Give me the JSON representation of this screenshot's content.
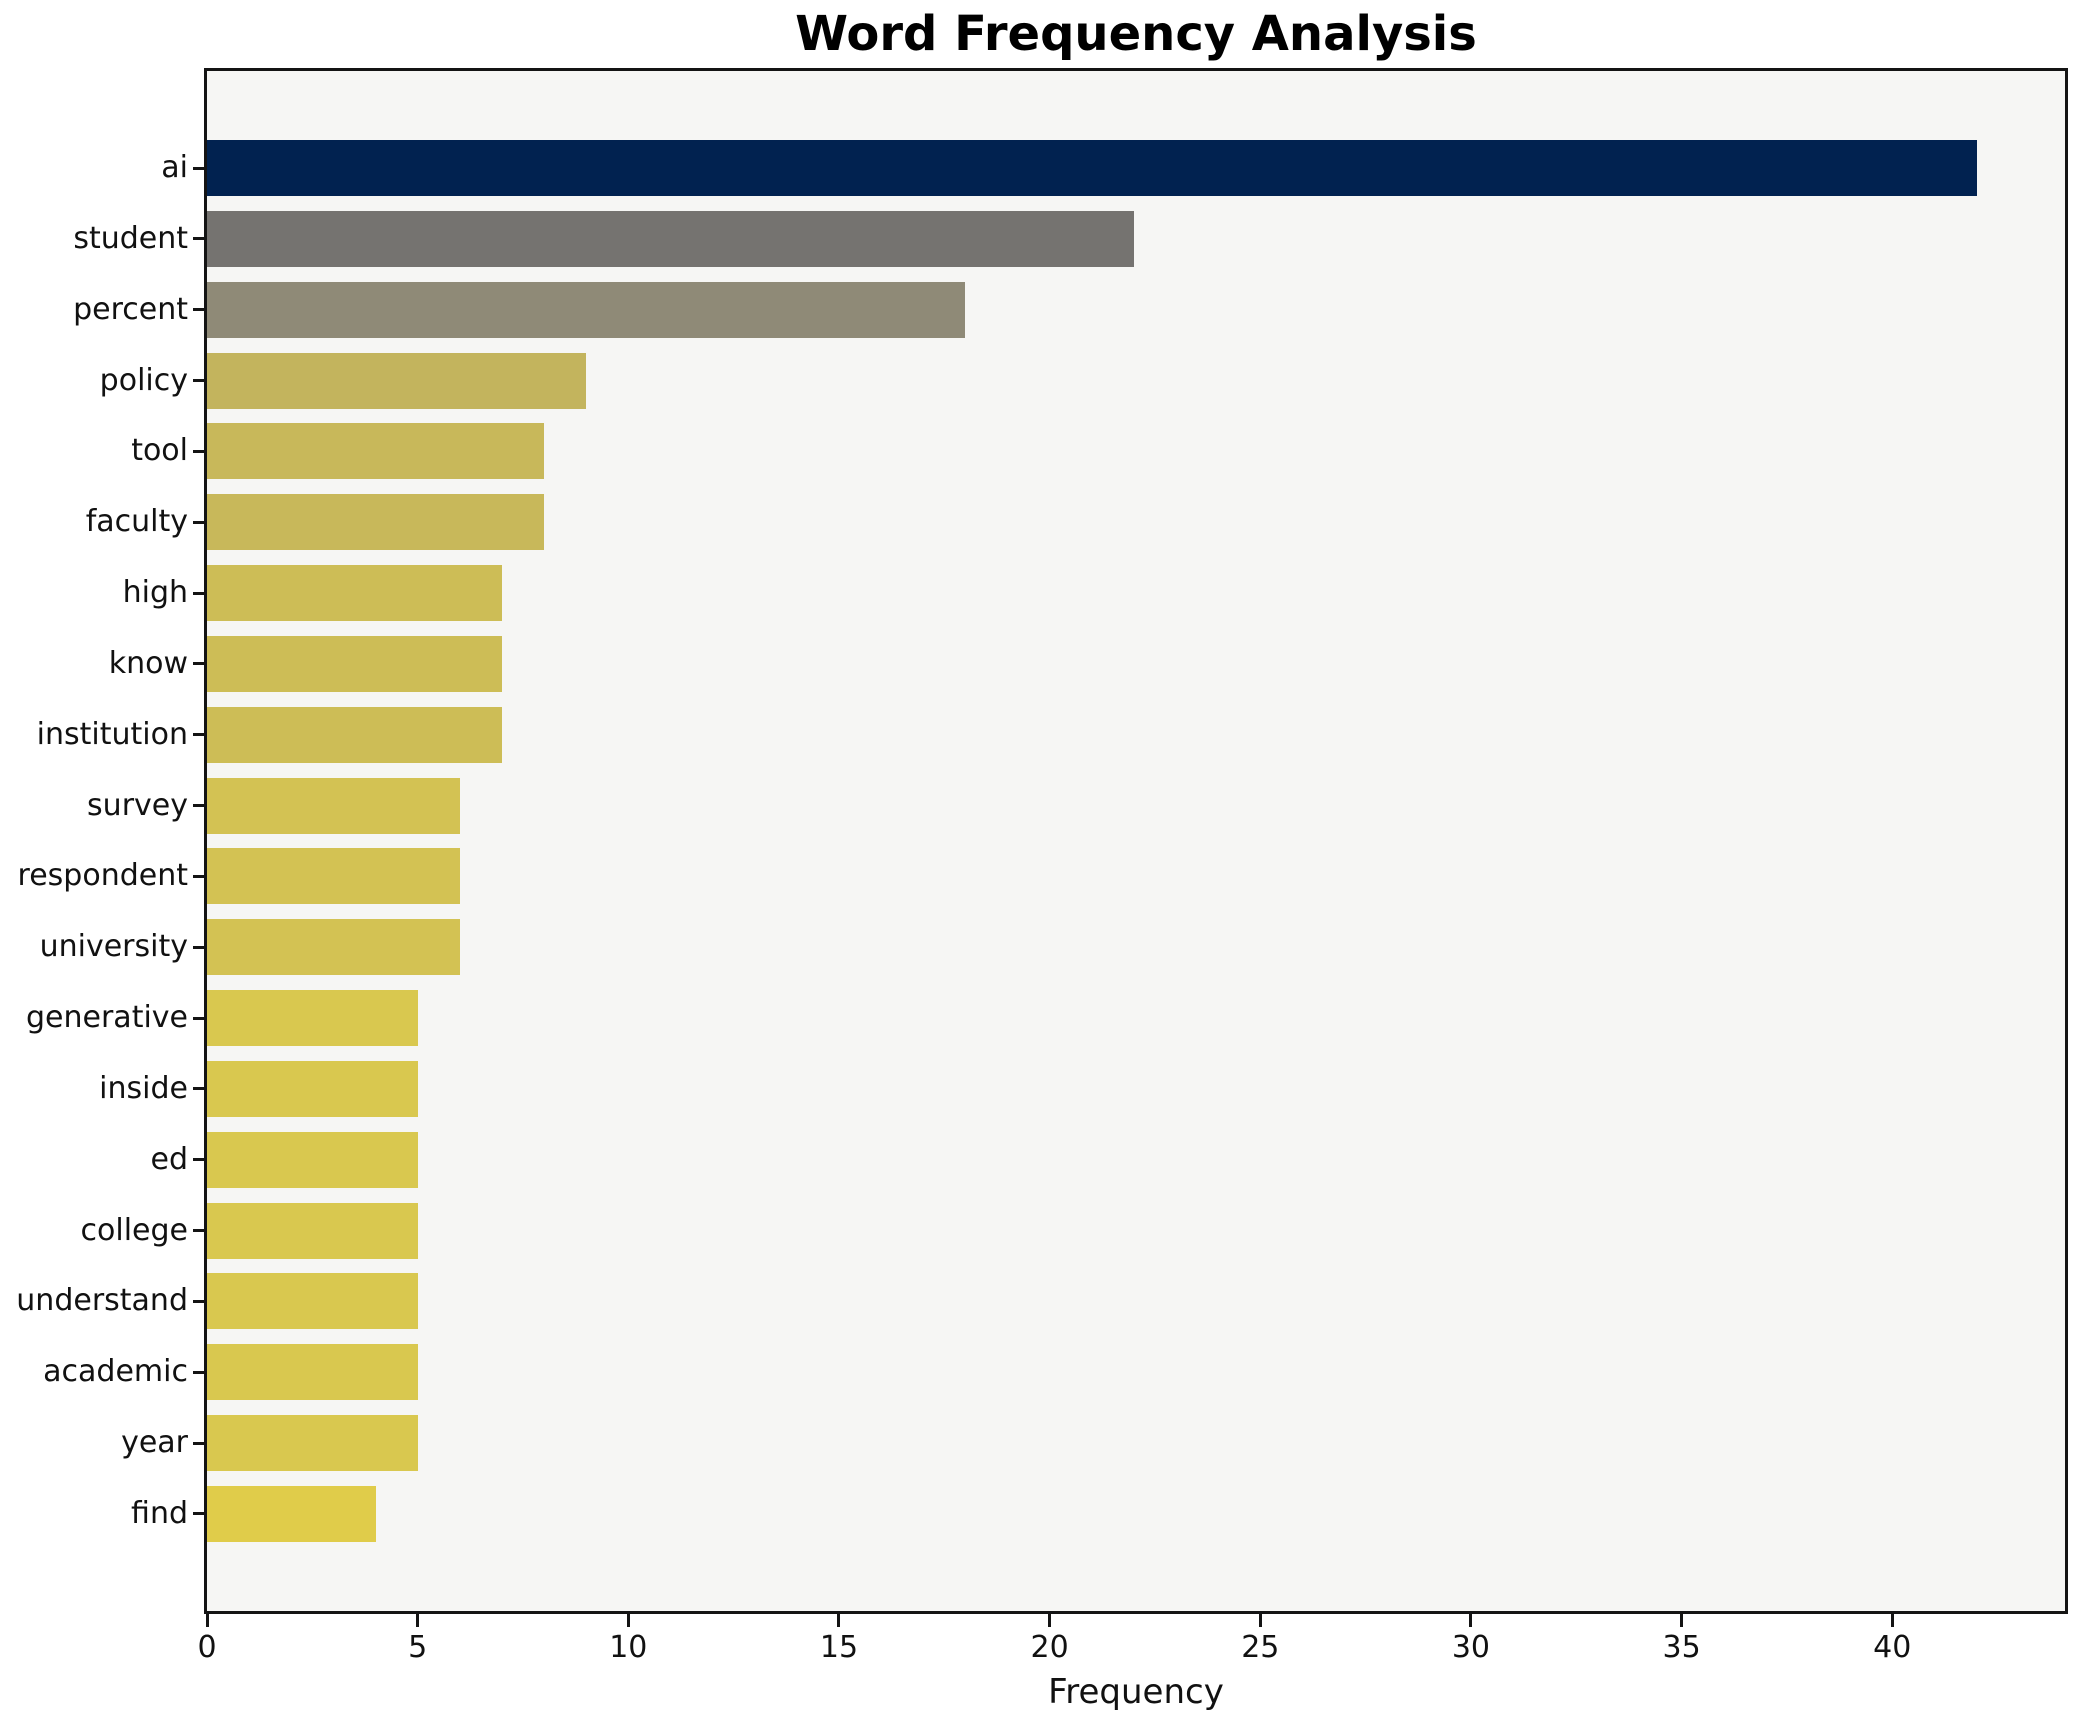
{
  "chart_data": {
    "type": "bar",
    "orientation": "horizontal",
    "title": "Word Frequency Analysis",
    "xlabel": "Frequency",
    "ylabel": "",
    "categories": [
      "ai",
      "student",
      "percent",
      "policy",
      "tool",
      "faculty",
      "high",
      "know",
      "institution",
      "survey",
      "respondent",
      "university",
      "generative",
      "inside",
      "ed",
      "college",
      "understand",
      "academic",
      "year",
      "find"
    ],
    "values": [
      42,
      22,
      18,
      9,
      8,
      8,
      7,
      7,
      7,
      6,
      6,
      6,
      5,
      5,
      5,
      5,
      5,
      5,
      5,
      4
    ],
    "bar_colors": [
      "#012250",
      "#757370",
      "#8f8a77",
      "#c3b45d",
      "#c8b85a",
      "#c8b85a",
      "#cdbd56",
      "#cdbd56",
      "#cdbd56",
      "#d3c253",
      "#d3c253",
      "#d3c253",
      "#d9c84f",
      "#d9c84f",
      "#d9c84f",
      "#d9c84f",
      "#d9c84f",
      "#d9c84f",
      "#d9c84f",
      "#e0cc4a"
    ],
    "x_ticks": [
      0,
      5,
      10,
      15,
      20,
      25,
      30,
      35,
      40
    ],
    "xlim": [
      0,
      44.1
    ],
    "grid": false,
    "legend": null,
    "colormap": "cividis reversed, mapped to value",
    "plot_background": "#f6f6f4",
    "figure_background": "#ffffff",
    "spine_color": "#141414"
  }
}
